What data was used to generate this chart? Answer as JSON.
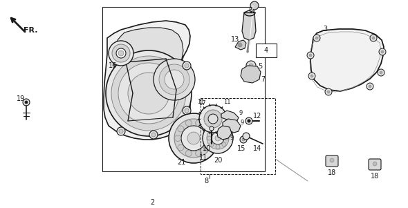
{
  "bg_color": "#ffffff",
  "lc": "#1a1a1a",
  "gc": "#888888",
  "fig_width": 5.9,
  "fig_height": 3.01,
  "dpi": 100
}
